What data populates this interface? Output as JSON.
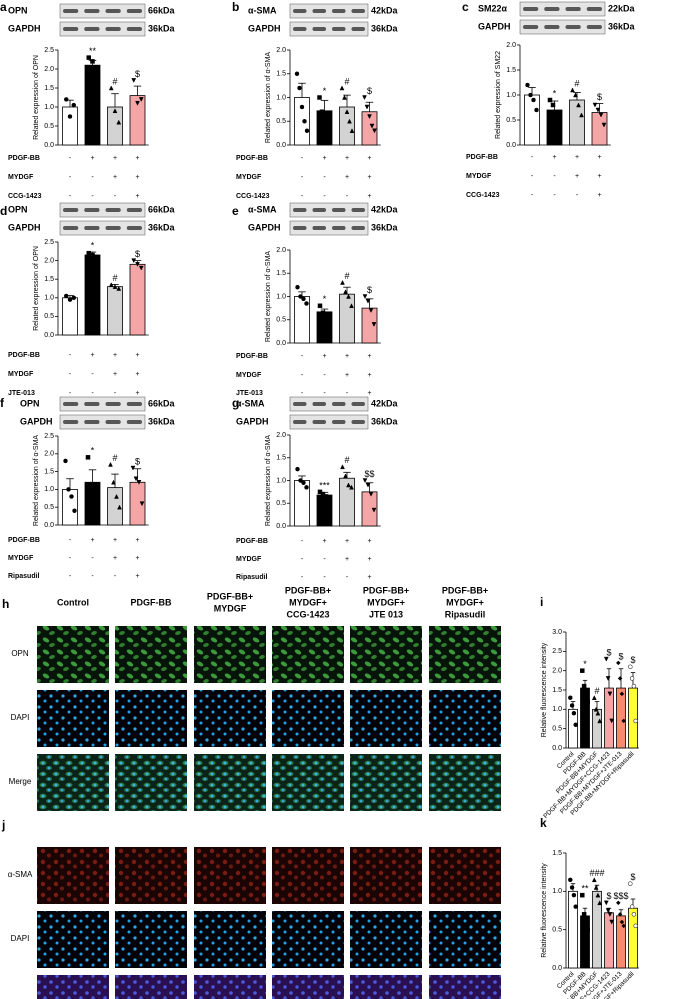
{
  "chart_data": [
    {
      "type": "bar",
      "panel": "a",
      "blots": [
        {
          "label": "OPN",
          "size": "66kDa"
        },
        {
          "label": "GAPDH",
          "size": "36kDa"
        }
      ],
      "ylabel": "Related expression of OPN",
      "values": [
        1.0,
        2.1,
        1.0,
        1.3
      ],
      "errors": [
        0.18,
        0.12,
        0.35,
        0.25
      ],
      "points": [
        [
          1.2,
          0.75,
          1.05
        ],
        [
          2.3,
          2.2,
          2.0
        ],
        [
          1.5,
          0.9,
          0.6
        ],
        [
          1.7,
          1.1,
          1.2
        ]
      ],
      "annotations": [
        null,
        "**",
        "#",
        "$"
      ],
      "colors": [
        "#ffffff",
        "#000000",
        "#d3d3d3",
        "#f4a6a6"
      ],
      "ylim": [
        0,
        2.5
      ],
      "yticks": [
        {
          "value": 0,
          "label": "0.0"
        },
        {
          "value": 0.5,
          "label": "0.5"
        },
        {
          "value": 1,
          "label": "1.0"
        },
        {
          "value": 1.5,
          "label": "1.5"
        },
        {
          "value": 2,
          "label": "2.0"
        },
        {
          "value": 2.5,
          "label": "2.5"
        }
      ],
      "treatments": [
        {
          "name": "PDGF-BB",
          "signs": [
            "-",
            "+",
            "+",
            "+"
          ]
        },
        {
          "name": "MYDGF",
          "signs": [
            "-",
            "-",
            "+",
            "+"
          ]
        },
        {
          "name": "CCG-1423",
          "signs": [
            "-",
            "-",
            "-",
            "+"
          ]
        }
      ]
    },
    {
      "type": "bar",
      "panel": "b",
      "blots": [
        {
          "label": "α-SMA",
          "size": "42kDa"
        },
        {
          "label": "GAPDH",
          "size": "36kDa"
        }
      ],
      "ylabel": "Related expression of α-SMA",
      "values": [
        1.0,
        0.72,
        0.8,
        0.7
      ],
      "errors": [
        0.3,
        0.22,
        0.25,
        0.2
      ],
      "points": [
        [
          1.5,
          1.2,
          0.8,
          0.5,
          0.3
        ],
        [
          1.0,
          0.7,
          0.5,
          0.3,
          0.2
        ],
        [
          1.2,
          1.0,
          0.7,
          0.5,
          0.3
        ],
        [
          1.0,
          0.8,
          0.6,
          0.4,
          0.3
        ]
      ],
      "annotations": [
        null,
        "*",
        "#",
        "$"
      ],
      "colors": [
        "#ffffff",
        "#000000",
        "#d3d3d3",
        "#f4a6a6"
      ],
      "ylim": [
        0,
        2
      ],
      "yticks": [
        {
          "value": 0,
          "label": "0.0"
        },
        {
          "value": 0.5,
          "label": "0.5"
        },
        {
          "value": 1,
          "label": "1.0"
        },
        {
          "value": 1.5,
          "label": "1.5"
        },
        {
          "value": 2,
          "label": "2.0"
        }
      ],
      "treatments": [
        {
          "name": "PDGF-BB",
          "signs": [
            "-",
            "+",
            "+",
            "+"
          ]
        },
        {
          "name": "MYDGF",
          "signs": [
            "-",
            "-",
            "+",
            "+"
          ]
        },
        {
          "name": "CCG-1423",
          "signs": [
            "-",
            "-",
            "-",
            "+"
          ]
        }
      ]
    },
    {
      "type": "bar",
      "panel": "c",
      "blots": [
        {
          "label": "SM22α",
          "size": "22kDa"
        },
        {
          "label": "GAPDH",
          "size": "36kDa"
        }
      ],
      "ylabel": "Related expression of SM22",
      "values": [
        1.0,
        0.7,
        0.9,
        0.65
      ],
      "errors": [
        0.15,
        0.18,
        0.15,
        0.18
      ],
      "points": [
        [
          1.2,
          1.0,
          0.9,
          0.7
        ],
        [
          0.9,
          0.8,
          0.5,
          0.4
        ],
        [
          1.1,
          1.0,
          0.8,
          0.6
        ],
        [
          0.8,
          0.7,
          0.6,
          0.4
        ]
      ],
      "annotations": [
        null,
        "*",
        "#",
        "$"
      ],
      "colors": [
        "#ffffff",
        "#000000",
        "#d3d3d3",
        "#f4a6a6"
      ],
      "ylim": [
        0,
        2
      ],
      "yticks": [
        {
          "value": 0,
          "label": "0.0"
        },
        {
          "value": 0.5,
          "label": "0.5"
        },
        {
          "value": 1,
          "label": "1.0"
        },
        {
          "value": 1.5,
          "label": "1.5"
        },
        {
          "value": 2,
          "label": "2.0"
        }
      ],
      "treatments": [
        {
          "name": "PDGF-BB",
          "signs": [
            "-",
            "+",
            "+",
            "+"
          ]
        },
        {
          "name": "MYDGF",
          "signs": [
            "-",
            "-",
            "+",
            "+"
          ]
        },
        {
          "name": "CCG-1423",
          "signs": [
            "-",
            "-",
            "-",
            "+"
          ]
        }
      ]
    },
    {
      "type": "bar",
      "panel": "d",
      "blots": [
        {
          "label": "OPN",
          "size": "66kDa"
        },
        {
          "label": "GAPDH",
          "size": "36kDa"
        }
      ],
      "ylabel": "Related expression of OPN",
      "values": [
        1.0,
        2.15,
        1.3,
        1.9
      ],
      "errors": [
        0.06,
        0.08,
        0.06,
        0.1
      ],
      "points": [
        [
          1.05,
          0.95,
          1.0
        ],
        [
          2.2,
          2.15,
          2.1
        ],
        [
          1.35,
          1.3,
          1.25
        ],
        [
          2.0,
          1.9,
          1.8
        ]
      ],
      "annotations": [
        null,
        "*",
        "#",
        "$"
      ],
      "colors": [
        "#ffffff",
        "#000000",
        "#d3d3d3",
        "#f4a6a6"
      ],
      "ylim": [
        0,
        2.5
      ],
      "yticks": [
        {
          "value": 0,
          "label": "0.0"
        },
        {
          "value": 0.5,
          "label": "0.5"
        },
        {
          "value": 1,
          "label": "1.0"
        },
        {
          "value": 1.5,
          "label": "1.5"
        },
        {
          "value": 2,
          "label": "2.0"
        },
        {
          "value": 2.5,
          "label": "2.5"
        }
      ],
      "treatments": [
        {
          "name": "PDGF-BB",
          "signs": [
            "-",
            "+",
            "+",
            "+"
          ]
        },
        {
          "name": "MYDGF",
          "signs": [
            "-",
            "-",
            "+",
            "+"
          ]
        },
        {
          "name": "JTE-013",
          "signs": [
            "-",
            "-",
            "-",
            "+"
          ]
        }
      ]
    },
    {
      "type": "bar",
      "panel": "e",
      "blots": [
        {
          "label": "α-SMA",
          "size": "42kDa"
        },
        {
          "label": "GAPDH",
          "size": "36kDa"
        }
      ],
      "ylabel": "Related expression of α-SMA",
      "values": [
        1.0,
        0.67,
        1.05,
        0.75
      ],
      "errors": [
        0.1,
        0.06,
        0.15,
        0.2
      ],
      "points": [
        [
          1.2,
          1.0,
          0.95,
          0.85
        ],
        [
          0.8,
          0.65,
          0.6,
          0.6
        ],
        [
          1.3,
          1.1,
          1.0,
          0.8
        ],
        [
          1.0,
          0.9,
          0.7,
          0.4
        ]
      ],
      "annotations": [
        null,
        "*",
        "#",
        "$"
      ],
      "colors": [
        "#ffffff",
        "#000000",
        "#d3d3d3",
        "#f4a6a6"
      ],
      "ylim": [
        0,
        2
      ],
      "yticks": [
        {
          "value": 0,
          "label": "0.0"
        },
        {
          "value": 0.5,
          "label": "0.5"
        },
        {
          "value": 1,
          "label": "1.0"
        },
        {
          "value": 1.5,
          "label": "1.5"
        },
        {
          "value": 2,
          "label": "2.0"
        }
      ],
      "treatments": [
        {
          "name": "PDGF-BB",
          "signs": [
            "-",
            "+",
            "+",
            "+"
          ]
        },
        {
          "name": "MYDGF",
          "signs": [
            "-",
            "-",
            "+",
            "+"
          ]
        },
        {
          "name": "JTE-013",
          "signs": [
            "-",
            "-",
            "-",
            "+"
          ]
        }
      ]
    },
    {
      "type": "bar",
      "panel": "f",
      "blots": [
        {
          "label": "OPN",
          "size": "66kDa"
        },
        {
          "label": "GAPDH",
          "size": "36kDa"
        }
      ],
      "ylabel": "Related expression of α-SMA",
      "values": [
        1.0,
        1.2,
        1.05,
        1.2
      ],
      "errors": [
        0.3,
        0.35,
        0.38,
        0.38
      ],
      "points": [
        [
          1.8,
          1.0,
          0.8,
          0.4
        ],
        [
          1.9,
          1.1,
          1.0,
          0.6
        ],
        [
          1.7,
          1.2,
          0.8,
          0.5
        ],
        [
          1.6,
          1.3,
          1.2,
          0.6
        ]
      ],
      "annotations": [
        null,
        "*",
        "#",
        "$"
      ],
      "colors": [
        "#ffffff",
        "#000000",
        "#d3d3d3",
        "#f4a6a6"
      ],
      "ylim": [
        0,
        2.5
      ],
      "yticks": [
        {
          "value": 0,
          "label": "0.0"
        },
        {
          "value": 0.5,
          "label": "0.5"
        },
        {
          "value": 1,
          "label": "1.0"
        },
        {
          "value": 1.5,
          "label": "1.5"
        },
        {
          "value": 2,
          "label": "2.0"
        },
        {
          "value": 2.5,
          "label": "2.5"
        }
      ],
      "treatments": [
        {
          "name": "PDGF-BB",
          "signs": [
            "-",
            "+",
            "+",
            "+"
          ]
        },
        {
          "name": "MYDGF",
          "signs": [
            "-",
            "-",
            "+",
            "+"
          ]
        },
        {
          "name": "Ripasudil",
          "signs": [
            "-",
            "-",
            "-",
            "+"
          ]
        }
      ]
    },
    {
      "type": "bar",
      "panel": "g",
      "blots": [
        {
          "label": "α-SMA",
          "size": "42kDa"
        },
        {
          "label": "GAPDH",
          "size": "36kDa"
        }
      ],
      "ylabel": "Related expression of α-SMA",
      "values": [
        1.0,
        0.68,
        1.05,
        0.75
      ],
      "errors": [
        0.1,
        0.06,
        0.13,
        0.2
      ],
      "points": [
        [
          1.25,
          1.0,
          0.95,
          0.85
        ],
        [
          0.75,
          0.7,
          0.65,
          0.6
        ],
        [
          1.3,
          1.1,
          0.9,
          0.85
        ],
        [
          1.0,
          0.9,
          0.7,
          0.35
        ]
      ],
      "annotations": [
        null,
        "***",
        "#",
        "$$"
      ],
      "colors": [
        "#ffffff",
        "#000000",
        "#d3d3d3",
        "#f4a6a6"
      ],
      "ylim": [
        0,
        2
      ],
      "yticks": [
        {
          "value": 0,
          "label": "0.0"
        },
        {
          "value": 0.5,
          "label": "0.5"
        },
        {
          "value": 1,
          "label": "1.0"
        },
        {
          "value": 1.5,
          "label": "1.5"
        },
        {
          "value": 2,
          "label": "2.0"
        }
      ],
      "treatments": [
        {
          "name": "PDGF-BB",
          "signs": [
            "-",
            "+",
            "+",
            "+"
          ]
        },
        {
          "name": "MYDGF",
          "signs": [
            "-",
            "-",
            "+",
            "+"
          ]
        },
        {
          "name": "Ripasudil",
          "signs": [
            "-",
            "-",
            "-",
            "+"
          ]
        }
      ]
    },
    {
      "type": "bar",
      "panel": "i",
      "ylabel": "Relative fluorescence intensity",
      "categories": [
        "Control",
        "PDGF-BB",
        "PDGF-BB+MYDGF",
        "PDGF-BB+MYDGF+CCG-1423",
        "PDGF-BB+MYDGF+JTE-013",
        "PDGF-BB+MYDGF+Ripasudil"
      ],
      "values": [
        1.0,
        1.55,
        1.0,
        1.55,
        1.55,
        1.55
      ],
      "errors": [
        0.2,
        0.2,
        0.2,
        0.5,
        0.5,
        0.4
      ],
      "points": [
        [
          1.3,
          1.1,
          0.9,
          0.6
        ],
        [
          2.0,
          1.6,
          1.4,
          1.2
        ],
        [
          1.3,
          1.0,
          0.9,
          0.7
        ],
        [
          2.3,
          1.8,
          1.4,
          0.7
        ],
        [
          2.2,
          1.8,
          1.4,
          0.7
        ],
        [
          2.1,
          1.8,
          1.6,
          0.7
        ]
      ],
      "annotations": [
        null,
        "*",
        "#",
        "$",
        "$",
        "$"
      ],
      "colors": [
        "#ffffff",
        "#000000",
        "#d3d3d3",
        "#f4a6a6",
        "#f48c6e",
        "#ffff33"
      ],
      "ylim": [
        0,
        3
      ],
      "yticks": [
        {
          "value": 0,
          "label": "0.0"
        },
        {
          "value": 0.5,
          "label": "0.5"
        },
        {
          "value": 1,
          "label": "1.0"
        },
        {
          "value": 1.5,
          "label": "1.5"
        },
        {
          "value": 2,
          "label": "2.0"
        },
        {
          "value": 2.5,
          "label": "2.5"
        },
        {
          "value": 3,
          "label": "3.0"
        }
      ]
    },
    {
      "type": "bar",
      "panel": "k",
      "ylabel": "Relative fluorescence intensity",
      "categories": [
        "Control",
        "PDGF-BB",
        "PDGF-BB+MYDGF",
        "PDGF-BB+MYDGF+CCG-1423",
        "PDGF-BB+MYDGF+JTE-013",
        "PDGF-BB+MYDGF+Ripasudil"
      ],
      "values": [
        1.0,
        0.68,
        1.0,
        0.72,
        0.68,
        0.78
      ],
      "errors": [
        0.1,
        0.1,
        0.08,
        0.06,
        0.08,
        0.12
      ],
      "points": [
        [
          1.15,
          1.05,
          0.95,
          0.8
        ],
        [
          0.95,
          0.7,
          0.6,
          0.5
        ],
        [
          1.15,
          1.05,
          0.95,
          0.85
        ],
        [
          0.85,
          0.75,
          0.7,
          0.6
        ],
        [
          0.85,
          0.7,
          0.6,
          0.55
        ],
        [
          1.1,
          0.8,
          0.7,
          0.55
        ]
      ],
      "annotations": [
        null,
        "**",
        "###",
        "$",
        "$$$",
        "$"
      ],
      "colors": [
        "#ffffff",
        "#000000",
        "#d3d3d3",
        "#f4a6a6",
        "#f48c6e",
        "#ffff33"
      ],
      "ylim": [
        0,
        1.5
      ],
      "yticks": [
        {
          "value": 0,
          "label": "0.0"
        },
        {
          "value": 0.5,
          "label": "0.5"
        },
        {
          "value": 1,
          "label": "1.0"
        },
        {
          "value": 1.5,
          "label": "1.5"
        }
      ]
    }
  ],
  "micrographs": [
    {
      "panel": "h",
      "columns": [
        [
          "Control"
        ],
        [
          "PDGF-BB"
        ],
        [
          "PDGF-BB+",
          "MYDGF"
        ],
        [
          "PDGF-BB+",
          "MYDGF+",
          "CCG-1423"
        ],
        [
          "PDGF-BB+",
          "MYDGF+",
          "JTE 013"
        ],
        [
          "PDGF-BB+",
          "MYDGF+",
          "Ripasudil"
        ]
      ],
      "rows": [
        {
          "label": "OPN",
          "color": "#1faa1f"
        },
        {
          "label": "DAPI",
          "color": "#2020cc"
        },
        {
          "label": "Merge",
          "color": "#000000"
        }
      ]
    },
    {
      "panel": "j",
      "rows": [
        {
          "label": "α-SMA",
          "color": "#dd2222"
        },
        {
          "label": "DAPI",
          "color": "#2020cc"
        },
        {
          "label": "Merge",
          "color": "#000000"
        }
      ]
    }
  ]
}
